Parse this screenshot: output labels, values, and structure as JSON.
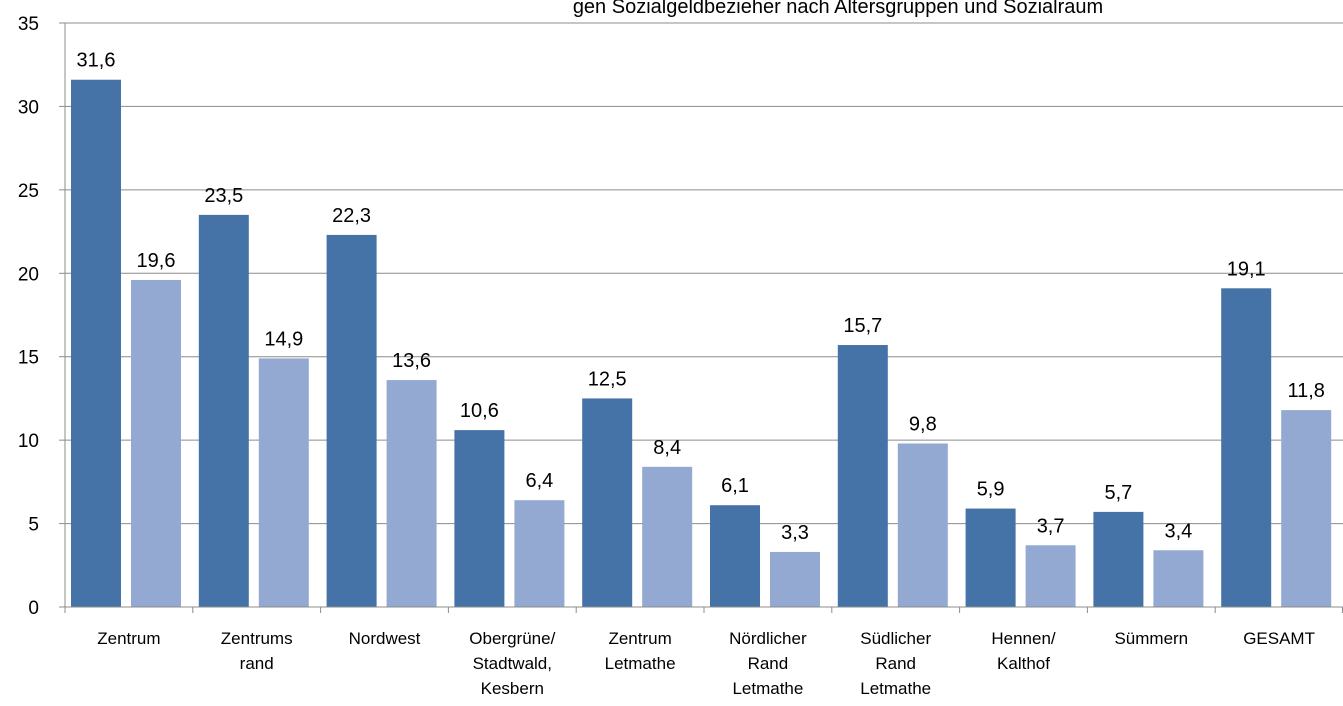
{
  "chart_data": {
    "type": "bar",
    "title": "gen Sozialgeldbezieher nach Altersgruppen und Sozialraum",
    "categories": [
      [
        "Zentrum"
      ],
      [
        "Zentrums",
        "rand"
      ],
      [
        "Nordwest"
      ],
      [
        "Obergrüne/",
        "Stadtwald,",
        "Kesbern"
      ],
      [
        "Zentrum",
        "Letmathe"
      ],
      [
        "Nördlicher",
        "Rand",
        "Letmathe"
      ],
      [
        "Südlicher",
        "Rand",
        "Letmathe"
      ],
      [
        "Hennen/",
        "Kalthof"
      ],
      [
        "Sümmern"
      ],
      [
        "GESAMT"
      ]
    ],
    "series": [
      {
        "color": "#4572a7",
        "values": [
          31.6,
          23.5,
          22.3,
          10.6,
          12.5,
          6.1,
          15.7,
          5.9,
          5.7,
          19.1
        ],
        "labels": [
          "31,6",
          "23,5",
          "22,3",
          "10,6",
          "12,5",
          "6,1",
          "15,7",
          "5,9",
          "5,7",
          "19,1"
        ]
      },
      {
        "color": "#93a9d1",
        "values": [
          19.6,
          14.9,
          13.6,
          6.4,
          8.4,
          3.3,
          9.8,
          3.7,
          3.4,
          11.8
        ],
        "labels": [
          "19,6",
          "14,9",
          "13,6",
          "6,4",
          "8,4",
          "3,3",
          "9,8",
          "3,7",
          "3,4",
          "11,8"
        ]
      }
    ],
    "ylim": [
      0,
      35
    ],
    "yticks": [
      0,
      5,
      10,
      15,
      20,
      25,
      30,
      35
    ],
    "grid": true,
    "legend": "none"
  }
}
